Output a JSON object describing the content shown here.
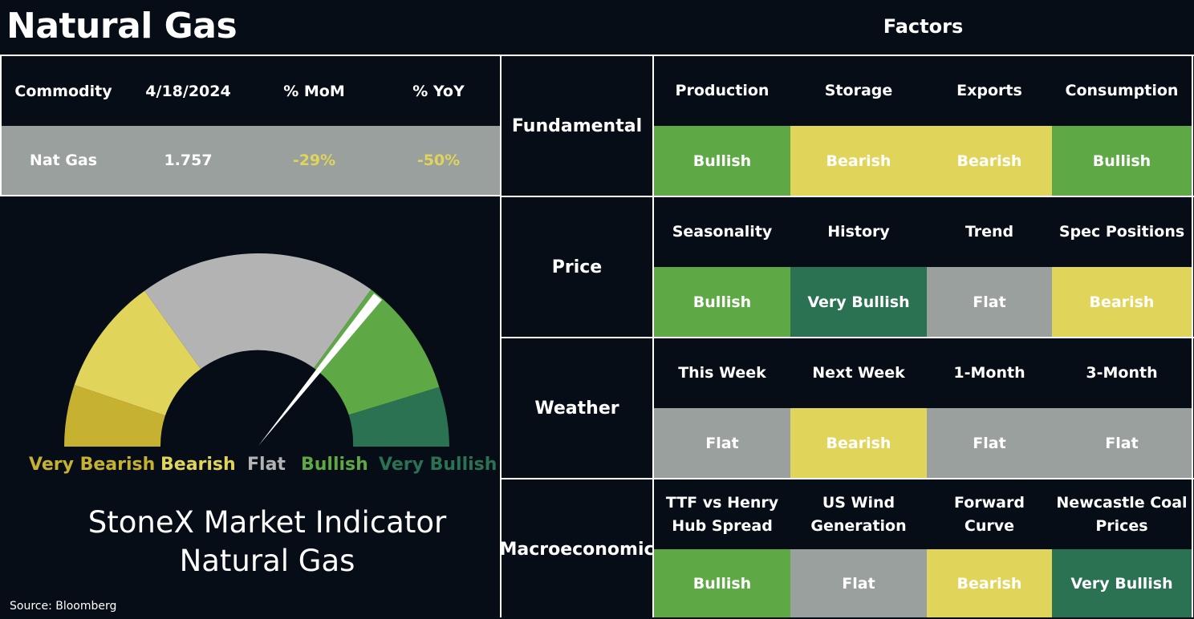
{
  "title": "Natural Gas",
  "factors_title": "Factors",
  "colors": {
    "background": "#060d16",
    "very_bullish": "#2b7253",
    "bullish": "#5ea845",
    "flat": "#9aa09d",
    "bearish": "#e0d55a",
    "very_bearish": "#c6b131",
    "gauge_flat": "#b3b3b3",
    "negative_text": "#e0d55a"
  },
  "commodity_table": {
    "headers": [
      "Commodity",
      "4/18/2024",
      "% MoM",
      "% YoY"
    ],
    "row": {
      "commodity": "Nat Gas",
      "price": "1.757",
      "mom": "-29%",
      "yoy": "-50%"
    }
  },
  "gauge": {
    "labels": {
      "very_bearish": "Very Bearish",
      "bearish": "Bearish",
      "flat": "Flat",
      "bullish": "Bullish",
      "very_bullish": "Very Bullish"
    },
    "needle_sector": "Bullish"
  },
  "indicator_title_line1": "StoneX Market Indicator",
  "indicator_title_line2": "Natural Gas",
  "source": "Source: Bloomberg",
  "groups": [
    {
      "name": "Fundamental",
      "factors": [
        {
          "label": "Production",
          "signal": "Bullish"
        },
        {
          "label": "Storage",
          "signal": "Bearish"
        },
        {
          "label": "Exports",
          "signal": "Bearish"
        },
        {
          "label": "Consumption",
          "signal": "Bullish"
        }
      ]
    },
    {
      "name": "Price",
      "factors": [
        {
          "label": "Seasonality",
          "signal": "Bullish"
        },
        {
          "label": "History",
          "signal": "Very Bullish"
        },
        {
          "label": "Trend",
          "signal": "Flat"
        },
        {
          "label": "Spec Positions",
          "signal": "Bearish"
        }
      ]
    },
    {
      "name": "Weather",
      "factors": [
        {
          "label": "This Week",
          "signal": "Flat"
        },
        {
          "label": "Next Week",
          "signal": "Bearish"
        },
        {
          "label": "1-Month",
          "signal": "Flat"
        },
        {
          "label": "3-Month",
          "signal": "Flat"
        }
      ]
    },
    {
      "name": "Macroeconomic",
      "factors": [
        {
          "label": "TTF vs Henry\nHub Spread",
          "signal": "Bullish"
        },
        {
          "label": "US Wind\nGeneration",
          "signal": "Flat"
        },
        {
          "label": "Forward\nCurve",
          "signal": "Bearish"
        },
        {
          "label": "Newcastle Coal\nPrices",
          "signal": "Very Bullish"
        }
      ]
    }
  ]
}
